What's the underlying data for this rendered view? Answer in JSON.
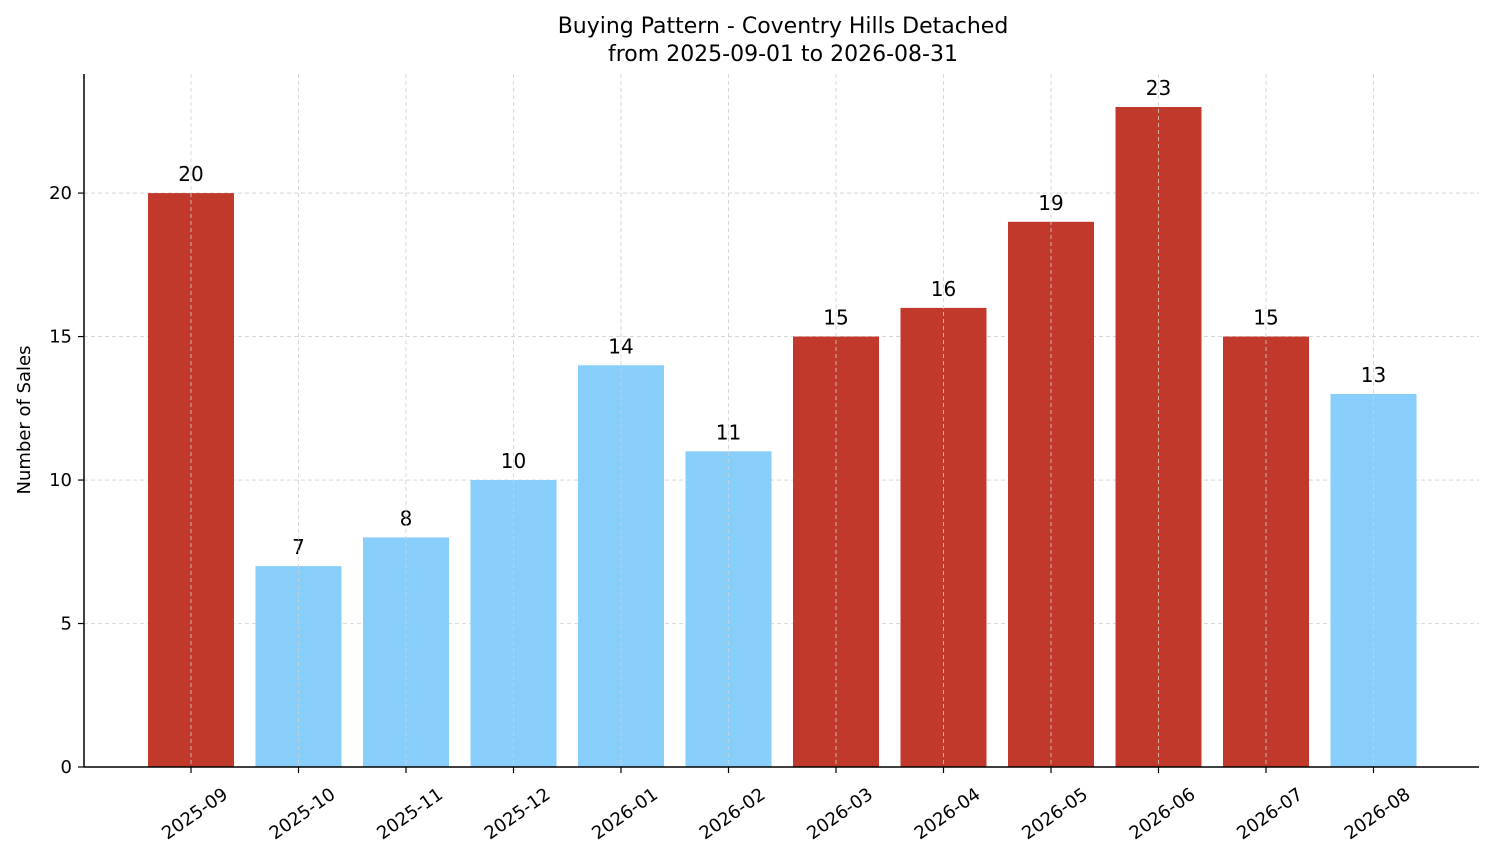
{
  "chart_data": {
    "type": "bar",
    "title": "Buying Pattern - Coventry Hills Detached",
    "subtitle": "from 2025-09-01 to 2026-08-31",
    "xlabel": "",
    "ylabel": "Number of Sales",
    "categories": [
      "2025-09",
      "2025-10",
      "2025-11",
      "2025-12",
      "2026-01",
      "2026-02",
      "2026-03",
      "2026-04",
      "2026-05",
      "2026-06",
      "2026-07",
      "2026-08"
    ],
    "values": [
      20,
      7,
      8,
      10,
      14,
      11,
      15,
      16,
      19,
      23,
      15,
      13
    ],
    "bar_colors": [
      "#c0392b",
      "#87cefa",
      "#87cefa",
      "#87cefa",
      "#87cefa",
      "#87cefa",
      "#c0392b",
      "#c0392b",
      "#c0392b",
      "#c0392b",
      "#c0392b",
      "#87cefa"
    ],
    "ylim": [
      0,
      24.15
    ],
    "yticks": [
      0,
      5,
      10,
      15,
      20
    ],
    "grid": true,
    "data_labels": true
  }
}
